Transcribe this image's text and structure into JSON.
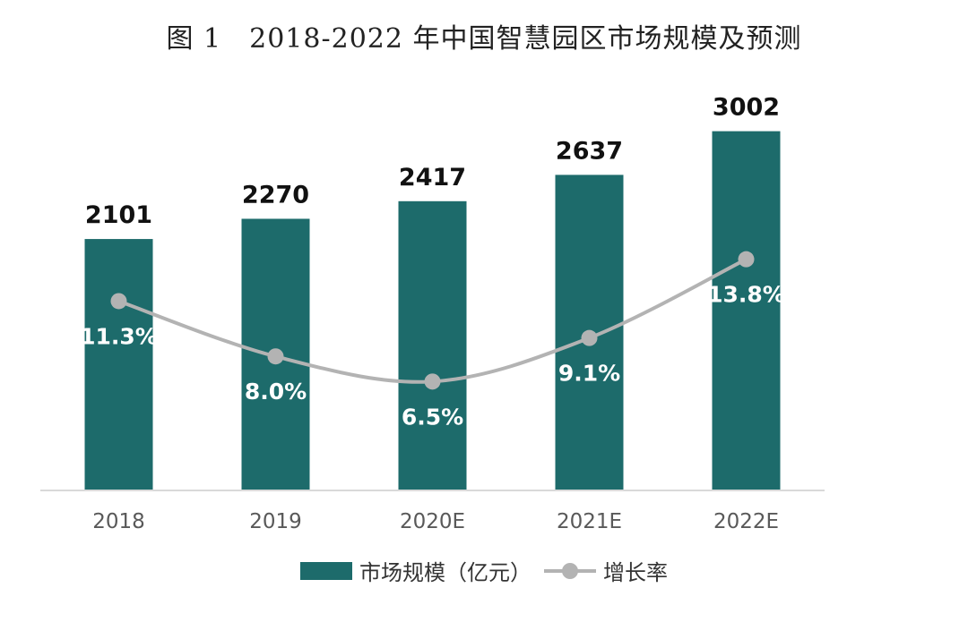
{
  "chart_data": {
    "type": "bar",
    "title": "图 1　2018-2022 年中国智慧园区市场规模及预测",
    "categories": [
      "2018",
      "2019",
      "2020E",
      "2021E",
      "2022E"
    ],
    "series": [
      {
        "name": "市场规模（亿元）",
        "kind": "bar",
        "values": [
          2101,
          2270,
          2417,
          2637,
          3002
        ],
        "labels": [
          "2101",
          "2270",
          "2417",
          "2637",
          "3002"
        ],
        "color": "#1d6b6b"
      },
      {
        "name": "增长率",
        "kind": "line",
        "values": [
          11.3,
          8.0,
          6.5,
          9.1,
          13.8
        ],
        "labels": [
          "11.3%",
          "8.0%",
          "6.5%",
          "9.1%",
          "13.8%"
        ],
        "color": "#b3b3b3"
      }
    ],
    "ylim_bar": [
      0,
      3500
    ],
    "ylim_line": [
      0,
      25
    ],
    "grid": false,
    "legend_position": "bottom"
  }
}
